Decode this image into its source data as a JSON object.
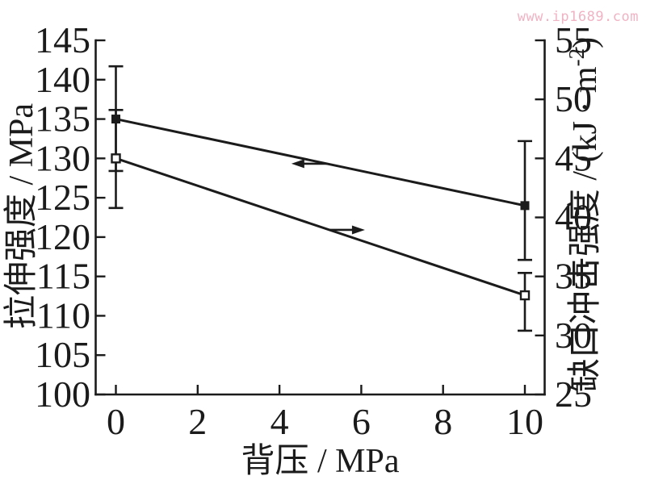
{
  "watermark": {
    "text": "www.ip1689.com",
    "color": "#f0b3c4"
  },
  "chart_data": {
    "type": "line",
    "title": "",
    "grid": false,
    "legend": "none",
    "x_axis": {
      "label": "背压 / MPa",
      "range": [
        -0.5,
        10.5
      ],
      "ticks": [
        0,
        2,
        4,
        6,
        8,
        10
      ]
    },
    "y_left_axis": {
      "label": "拉伸强度 / MPa",
      "range": [
        100,
        145
      ],
      "ticks": [
        100,
        105,
        110,
        115,
        120,
        125,
        130,
        135,
        140,
        145
      ]
    },
    "y_right_axis": {
      "label": "缺口冲击强度 / (kJ · m⁻²)",
      "label_parts": {
        "main": "缺口冲击强度 / (kJ · m",
        "superscript": "-2",
        "end": ")"
      },
      "range": [
        25,
        55
      ],
      "ticks": [
        25,
        30,
        35,
        40,
        45,
        50,
        55
      ]
    },
    "series": [
      {
        "name": "拉伸强度",
        "axis": "left",
        "marker": "filled-square",
        "color": "#1b1b1b",
        "points": [
          {
            "x": 0,
            "y": 135,
            "err_up": 6.7,
            "err_down": 6.6
          },
          {
            "x": 10,
            "y": 124,
            "err_up": 8.2,
            "err_down": 6.9
          }
        ]
      },
      {
        "name": "缺口冲击强度",
        "axis": "right",
        "marker": "open-square",
        "color": "#1b1b1b",
        "points": [
          {
            "x": 0,
            "y": 45,
            "err_up": 4.1,
            "err_down": 4.2
          },
          {
            "x": 10,
            "y": 33.4,
            "err_up": 1.9,
            "err_down": 3.0
          }
        ]
      }
    ],
    "annotations": {
      "arrows": [
        {
          "series": 0,
          "at_x": 5.16,
          "dir": "left",
          "meaning": "series reads left axis"
        },
        {
          "series": 1,
          "at_x": 5.22,
          "dir": "right",
          "meaning": "series reads right axis"
        }
      ]
    }
  }
}
